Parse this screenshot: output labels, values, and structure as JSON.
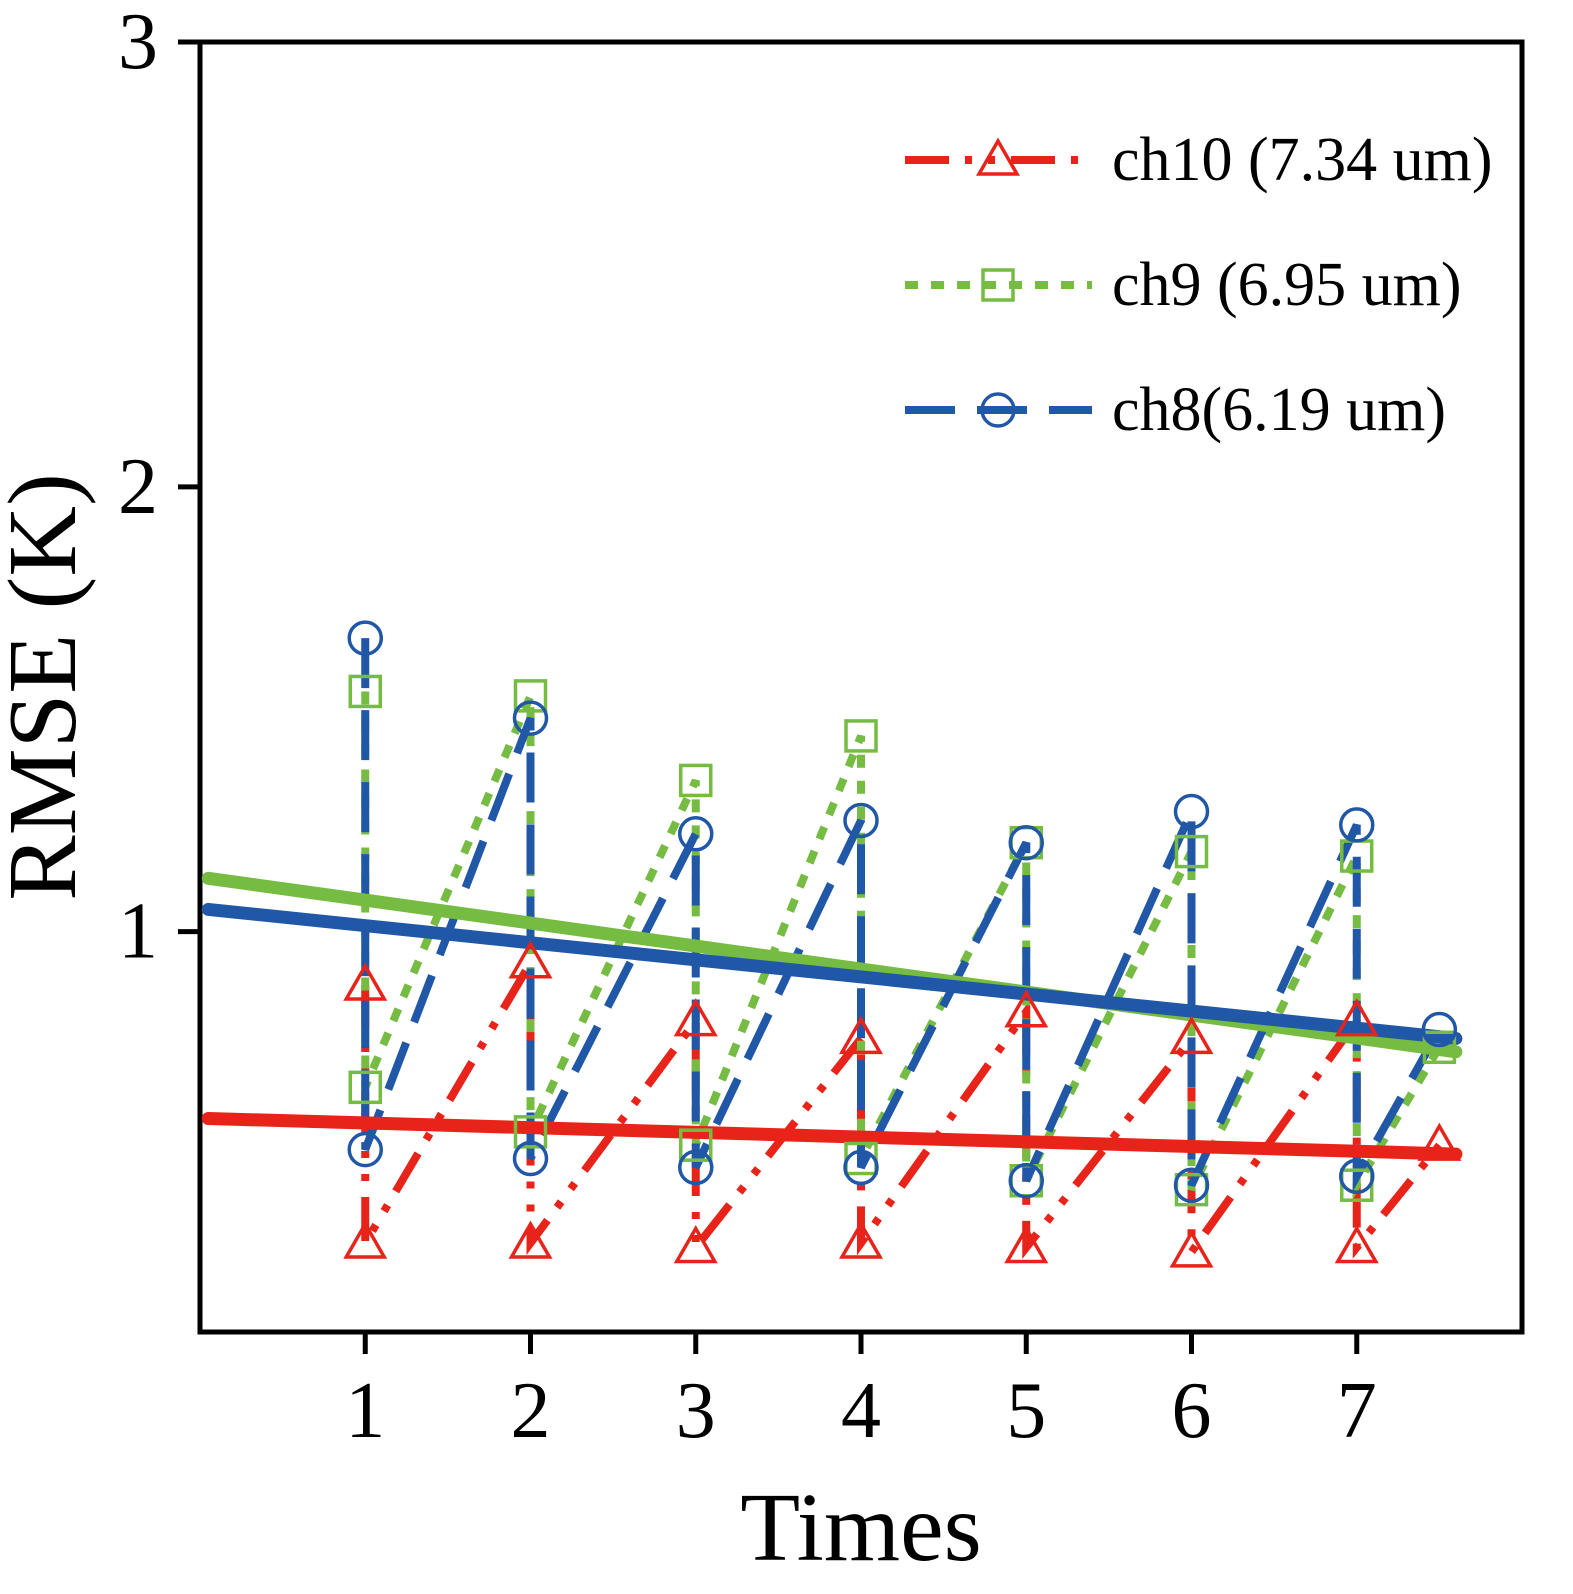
{
  "figure": {
    "background": "#ffffff"
  },
  "chart_data": {
    "type": "line",
    "title": "",
    "xlabel": "Times",
    "ylabel": "RMSE (K)",
    "xlim": [
      0,
      8
    ],
    "ylim": [
      0.1,
      3
    ],
    "xticks": [
      1,
      2,
      3,
      4,
      5,
      6,
      7
    ],
    "yticks": [
      1,
      2,
      3
    ],
    "grid": false,
    "legend_position": "top-right",
    "series": [
      {
        "name": "ch10 (7.34 um)",
        "color": "#e8231a",
        "marker": "triangle",
        "line_style": "dashdotdot",
        "path": [
          [
            1,
            0.88
          ],
          [
            1,
            0.3
          ],
          [
            2,
            0.93
          ],
          [
            2,
            0.3
          ],
          [
            3,
            0.8
          ],
          [
            3,
            0.29
          ],
          [
            4,
            0.76
          ],
          [
            4,
            0.3
          ],
          [
            5,
            0.82
          ],
          [
            5,
            0.29
          ],
          [
            6,
            0.76
          ],
          [
            6,
            0.28
          ],
          [
            7,
            0.8
          ],
          [
            7,
            0.29
          ],
          [
            7.5,
            0.52
          ]
        ],
        "trend": [
          [
            0.05,
            0.58
          ],
          [
            7.6,
            0.5
          ]
        ]
      },
      {
        "name": "ch9 (6.95 um)",
        "color": "#76bc43",
        "marker": "square",
        "line_style": "dotted",
        "path": [
          [
            1,
            1.54
          ],
          [
            1,
            0.65
          ],
          [
            2,
            1.53
          ],
          [
            2,
            0.55
          ],
          [
            3,
            1.34
          ],
          [
            3,
            0.52
          ],
          [
            4,
            1.44
          ],
          [
            4,
            0.49
          ],
          [
            5,
            1.2
          ],
          [
            5,
            0.44
          ],
          [
            6,
            1.18
          ],
          [
            6,
            0.42
          ],
          [
            7,
            1.17
          ],
          [
            7,
            0.43
          ],
          [
            7.5,
            0.74
          ]
        ],
        "trend": [
          [
            0.05,
            1.12
          ],
          [
            7.6,
            0.73
          ]
        ]
      },
      {
        "name": "ch8(6.19 um)",
        "color": "#2157a7",
        "marker": "circle",
        "line_style": "dashed",
        "path": [
          [
            1,
            1.66
          ],
          [
            1,
            0.51
          ],
          [
            2,
            1.48
          ],
          [
            2,
            0.49
          ],
          [
            3,
            1.22
          ],
          [
            3,
            0.47
          ],
          [
            4,
            1.25
          ],
          [
            4,
            0.47
          ],
          [
            5,
            1.2
          ],
          [
            5,
            0.44
          ],
          [
            6,
            1.27
          ],
          [
            6,
            0.43
          ],
          [
            7,
            1.24
          ],
          [
            7,
            0.45
          ],
          [
            7.5,
            0.78
          ]
        ],
        "trend": [
          [
            0.05,
            1.05
          ],
          [
            7.6,
            0.76
          ]
        ]
      }
    ]
  }
}
